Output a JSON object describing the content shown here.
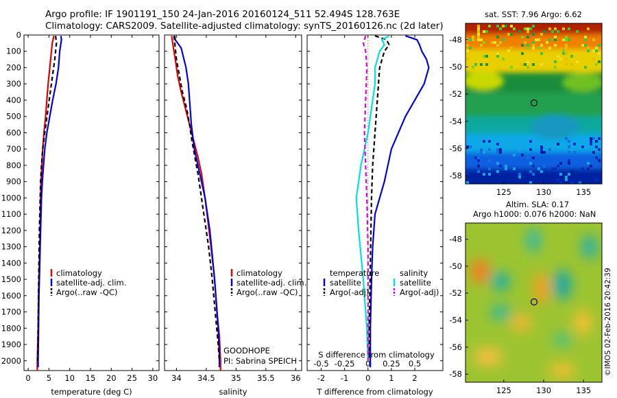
{
  "header": {
    "line1": "Argo profile: IF 1901191_150 24-Jan-2016 20160124_511 52.494S 128.763E",
    "line2": "Climatology: CARS2009. Satellite-adjusted climatology: synTS_20160126.nc (2d later)"
  },
  "colors": {
    "climatology": "#e00000",
    "satellite": "#0000e0",
    "argo": "#000000",
    "salinity_sat": "#00e0e0",
    "salinity_argo": "#e000e0"
  },
  "legend_labels": {
    "climatology": "climatology",
    "satellite_clim": "satellite-adj. clim.",
    "argo_raw": "Argo(..raw -QC)",
    "temperature": "temperature",
    "salinity": "salinity",
    "satellite": "satellite",
    "argo_adj": "Argo(-adj)"
  },
  "annotations": {
    "project": "GOODHOPE",
    "pi": "PI: Sabrina SPEICH",
    "credit": "©IMOS 02-Feb-2016 20:42:39"
  },
  "map_titles": {
    "sst": "sat. SST: 7.96 Argo: 6.62",
    "sla1": "Altim. SLA: 0.17",
    "sla2": "Argo h1000: 0.076 h2000: NaN"
  },
  "chart_data": [
    {
      "id": "temperature",
      "type": "line",
      "xlabel": "temperature (deg C)",
      "xlim": [
        -1,
        31.5
      ],
      "ylim": [
        0,
        2060
      ],
      "y_reversed": true,
      "xticks": [
        0,
        5,
        10,
        15,
        20,
        25,
        30
      ],
      "yticks": [
        0,
        100,
        200,
        300,
        400,
        500,
        600,
        700,
        800,
        900,
        1000,
        1100,
        1200,
        1300,
        1400,
        1500,
        1600,
        1700,
        1800,
        1900,
        2000
      ],
      "series": [
        {
          "name": "climatology",
          "color": "#e00000",
          "dash": "",
          "points": [
            [
              6.2,
              5
            ],
            [
              5.8,
              50
            ],
            [
              5.6,
              100
            ],
            [
              5.2,
              200
            ],
            [
              4.8,
              300
            ],
            [
              4.5,
              400
            ],
            [
              4.2,
              500
            ],
            [
              3.8,
              600
            ],
            [
              3.5,
              700
            ],
            [
              3.3,
              800
            ],
            [
              3.1,
              900
            ],
            [
              3.0,
              1000
            ],
            [
              2.9,
              1200
            ],
            [
              2.7,
              1400
            ],
            [
              2.5,
              1600
            ],
            [
              2.4,
              1800
            ],
            [
              2.3,
              1900
            ],
            [
              2.2,
              2000
            ],
            [
              2.2,
              2060
            ]
          ]
        },
        {
          "name": "satellite-adj. clim.",
          "color": "#0000e0",
          "dash": "",
          "points": [
            [
              7.9,
              5
            ],
            [
              8.0,
              30
            ],
            [
              7.6,
              100
            ],
            [
              7.3,
              200
            ],
            [
              6.7,
              300
            ],
            [
              5.9,
              400
            ],
            [
              5.2,
              500
            ],
            [
              4.5,
              600
            ],
            [
              4.0,
              700
            ],
            [
              3.7,
              800
            ],
            [
              3.4,
              900
            ],
            [
              3.2,
              1000
            ],
            [
              3.0,
              1200
            ],
            [
              2.8,
              1400
            ],
            [
              2.6,
              1600
            ],
            [
              2.5,
              1800
            ],
            [
              2.4,
              2000
            ],
            [
              2.4,
              2040
            ]
          ]
        },
        {
          "name": "Argo(..raw -QC)",
          "color": "#000000",
          "dash": "6,4",
          "points": [
            [
              6.6,
              5
            ],
            [
              6.8,
              50
            ],
            [
              6.4,
              150
            ],
            [
              5.6,
              300
            ],
            [
              4.8,
              450
            ],
            [
              4.0,
              600
            ],
            [
              3.5,
              700
            ],
            [
              3.2,
              800
            ],
            [
              3.0,
              900
            ],
            [
              2.9,
              1000
            ],
            [
              2.7,
              1200
            ],
            [
              2.6,
              1400
            ],
            [
              2.5,
              1600
            ],
            [
              2.4,
              1800
            ],
            [
              2.3,
              2000
            ]
          ]
        }
      ]
    },
    {
      "id": "salinity",
      "type": "line",
      "xlabel": "salinity",
      "xlim": [
        33.8,
        36.1
      ],
      "ylim": [
        0,
        2060
      ],
      "y_reversed": true,
      "xticks": [
        34,
        34.5,
        35,
        35.5,
        36
      ],
      "series": [
        {
          "name": "climatology",
          "color": "#e00000",
          "dash": "",
          "points": [
            [
              33.92,
              5
            ],
            [
              33.95,
              80
            ],
            [
              33.98,
              150
            ],
            [
              34.02,
              250
            ],
            [
              34.08,
              350
            ],
            [
              34.15,
              450
            ],
            [
              34.22,
              550
            ],
            [
              34.29,
              650
            ],
            [
              34.36,
              750
            ],
            [
              34.42,
              850
            ],
            [
              34.48,
              1000
            ],
            [
              34.53,
              1150
            ],
            [
              34.58,
              1300
            ],
            [
              34.64,
              1500
            ],
            [
              34.68,
              1700
            ],
            [
              34.72,
              1850
            ],
            [
              34.74,
              2000
            ],
            [
              34.74,
              2060
            ]
          ]
        },
        {
          "name": "satellite-adj. clim.",
          "color": "#0000e0",
          "dash": "",
          "points": [
            [
              33.97,
              5
            ],
            [
              33.98,
              30
            ],
            [
              34.08,
              80
            ],
            [
              34.16,
              200
            ],
            [
              34.2,
              300
            ],
            [
              34.22,
              400
            ],
            [
              34.25,
              550
            ],
            [
              34.3,
              700
            ],
            [
              34.36,
              800
            ],
            [
              34.42,
              900
            ],
            [
              34.48,
              1000
            ],
            [
              34.52,
              1100
            ],
            [
              34.56,
              1200
            ],
            [
              34.6,
              1350
            ],
            [
              34.64,
              1500
            ],
            [
              34.67,
              1650
            ],
            [
              34.7,
              1800
            ],
            [
              34.72,
              1950
            ],
            [
              34.72,
              2040
            ]
          ]
        },
        {
          "name": "Argo(..raw -QC)",
          "color": "#000000",
          "dash": "6,4",
          "points": [
            [
              33.96,
              5
            ],
            [
              33.98,
              80
            ],
            [
              34.0,
              150
            ],
            [
              34.05,
              250
            ],
            [
              34.1,
              350
            ],
            [
              34.17,
              450
            ],
            [
              34.22,
              550
            ],
            [
              34.26,
              650
            ],
            [
              34.31,
              750
            ],
            [
              34.36,
              850
            ],
            [
              34.42,
              1000
            ],
            [
              34.48,
              1150
            ],
            [
              34.54,
              1300
            ],
            [
              34.6,
              1500
            ],
            [
              34.65,
              1700
            ],
            [
              34.7,
              1900
            ],
            [
              34.72,
              2000
            ]
          ]
        }
      ]
    },
    {
      "id": "difference",
      "type": "line",
      "xlabel": "T difference from climatology",
      "xlabel_top": "S difference from climatology",
      "xlim": [
        -2.6,
        3.2
      ],
      "ylim": [
        0,
        2060
      ],
      "y_reversed": true,
      "xticks": [
        -2,
        -1,
        0,
        1,
        2
      ],
      "xticks_top": [
        "-0.5",
        "-0.25",
        "0",
        "0.25",
        "0.5"
      ],
      "series": [
        {
          "name": "temperature satellite",
          "color": "#0000e0",
          "dash": "",
          "points": [
            [
              1.6,
              5
            ],
            [
              2.1,
              30
            ],
            [
              2.2,
              60
            ],
            [
              2.3,
              100
            ],
            [
              2.5,
              150
            ],
            [
              2.6,
              200
            ],
            [
              2.4,
              300
            ],
            [
              1.6,
              500
            ],
            [
              1.0,
              700
            ],
            [
              0.7,
              900
            ],
            [
              0.5,
              1000
            ],
            [
              0.3,
              1100
            ],
            [
              0.2,
              1300
            ],
            [
              0.15,
              1500
            ],
            [
              0.1,
              1800
            ],
            [
              0.1,
              2040
            ]
          ]
        },
        {
          "name": "temperature Argo(-adj)",
          "color": "#000000",
          "dash": "6,4",
          "points": [
            [
              0.3,
              5
            ],
            [
              0.8,
              30
            ],
            [
              0.9,
              60
            ],
            [
              0.7,
              100
            ],
            [
              0.5,
              200
            ],
            [
              0.4,
              400
            ],
            [
              0.3,
              600
            ],
            [
              0.2,
              800
            ],
            [
              0.15,
              1000
            ],
            [
              0.1,
              1400
            ],
            [
              0.05,
              1800
            ],
            [
              0.05,
              2000
            ]
          ]
        },
        {
          "name": "salinity satellite",
          "color": "#00e0e0",
          "dash": "",
          "points": [
            [
              0.9,
              5
            ],
            [
              0.6,
              30
            ],
            [
              0.7,
              60
            ],
            [
              0.5,
              100
            ],
            [
              0.3,
              200
            ],
            [
              0.3,
              300
            ],
            [
              0.2,
              400
            ],
            [
              0.0,
              600
            ],
            [
              -0.3,
              800
            ],
            [
              -0.5,
              1000
            ],
            [
              -0.4,
              1200
            ],
            [
              -0.2,
              1500
            ],
            [
              -0.05,
              1800
            ],
            [
              0.0,
              2000
            ]
          ]
        },
        {
          "name": "salinity Argo(-adj)",
          "color": "#e000e0",
          "dash": "6,4",
          "points": [
            [
              -0.1,
              5
            ],
            [
              -0.2,
              50
            ],
            [
              -0.1,
              100
            ],
            [
              -0.05,
              200
            ],
            [
              -0.1,
              400
            ],
            [
              -0.15,
              600
            ],
            [
              -0.1,
              800
            ],
            [
              -0.05,
              1000
            ],
            [
              0.0,
              1300
            ],
            [
              0.0,
              1700
            ],
            [
              0.0,
              2000
            ]
          ]
        }
      ]
    },
    {
      "id": "sst_map",
      "type": "heatmap",
      "title": "sat. SST: 7.96 Argo: 6.62",
      "xlim": [
        120.2,
        137.3
      ],
      "ylim": [
        -58.6,
        -46.8
      ],
      "xticks": [
        125,
        130,
        135
      ],
      "yticks": [
        -48,
        -50,
        -52,
        -54,
        -56,
        -58
      ],
      "marker": [
        128.763,
        -52.494
      ]
    },
    {
      "id": "sla_map",
      "type": "heatmap",
      "title": "Altim. SLA: 0.17",
      "xlim": [
        120.2,
        137.3
      ],
      "ylim": [
        -58.6,
        -46.8
      ],
      "xticks": [
        125,
        130,
        135
      ],
      "yticks": [
        -48,
        -50,
        -52,
        -54,
        -56,
        -58
      ],
      "marker": [
        128.763,
        -52.494
      ]
    }
  ]
}
